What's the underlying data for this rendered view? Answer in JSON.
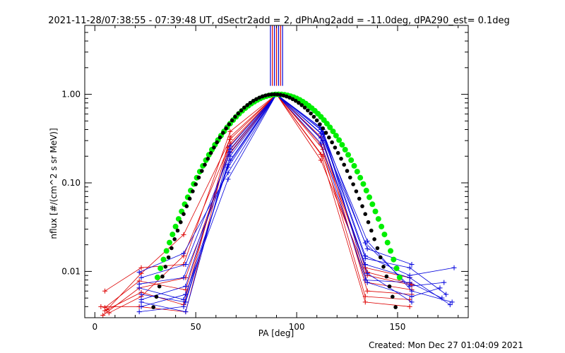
{
  "chart_data": {
    "type": "line",
    "title": "2021-11-28/07:38:55 - 07:39:48 UT, dSectr2add = 2, dPhAng2add = -11.0deg, dPA290_est=  0.1deg",
    "xlabel": "PA [deg]",
    "ylabel": "nflux [#/(cm^2 s sr MeV)]",
    "xlim": [
      -5,
      185
    ],
    "ylim": [
      0.003,
      6.0
    ],
    "yscale": "log",
    "x_ticks": [
      0,
      50,
      100,
      150
    ],
    "x_tick_labels": [
      "0",
      "50",
      "100",
      "150"
    ],
    "y_ticks": [
      0.01,
      0.1,
      1.0
    ],
    "y_tick_labels": [
      "0.01",
      "0.10",
      "1.00"
    ],
    "x_minor_step": 10,
    "grid": false,
    "footer": "Created: Mon Dec 27 01:04:09 2021",
    "colors": {
      "red": "#dd0000",
      "blue": "#0000dd",
      "green": "#00ee00",
      "black": "#000000"
    },
    "series": [
      {
        "color": "red",
        "points": [
          [
            5,
            0.006
          ],
          [
            23,
            0.011
          ],
          [
            44,
            0.012
          ],
          [
            67,
            0.38
          ],
          [
            90,
            1.0
          ],
          [
            112,
            0.18
          ],
          [
            135,
            0.009
          ],
          [
            157,
            0.007
          ]
        ]
      },
      {
        "color": "red",
        "points": [
          [
            3,
            0.004
          ],
          [
            22,
            0.004
          ],
          [
            45,
            0.0035
          ],
          [
            66,
            0.25
          ],
          [
            90,
            1.0
          ],
          [
            112,
            0.21
          ],
          [
            134,
            0.0045
          ],
          [
            156,
            0.004
          ]
        ]
      },
      {
        "color": "red",
        "points": [
          [
            6,
            0.0037
          ],
          [
            23,
            0.0095
          ],
          [
            44,
            0.026
          ],
          [
            67,
            0.31
          ],
          [
            90,
            1.0
          ],
          [
            113,
            0.3
          ],
          [
            135,
            0.006
          ],
          [
            157,
            0.0055
          ]
        ]
      },
      {
        "color": "red",
        "points": [
          [
            4,
            0.0032
          ],
          [
            22,
            0.0065
          ],
          [
            45,
            0.0085
          ],
          [
            66,
            0.2
          ],
          [
            90,
            1.0
          ],
          [
            112,
            0.33
          ],
          [
            134,
            0.011
          ],
          [
            156,
            0.0085
          ]
        ]
      },
      {
        "color": "red",
        "points": [
          [
            7,
            0.0034
          ],
          [
            23,
            0.0052
          ],
          [
            44,
            0.015
          ],
          [
            67,
            0.28
          ],
          [
            90,
            1.0
          ],
          [
            113,
            0.2
          ],
          [
            135,
            0.0075
          ],
          [
            157,
            0.0062
          ]
        ]
      },
      {
        "color": "red",
        "points": [
          [
            5,
            0.0039
          ],
          [
            22,
            0.0078
          ],
          [
            45,
            0.0062
          ],
          [
            66,
            0.22
          ],
          [
            90,
            1.0
          ],
          [
            112,
            0.27
          ],
          [
            134,
            0.0052
          ],
          [
            156,
            0.0048
          ]
        ]
      },
      {
        "color": "red",
        "points": [
          [
            5,
            0.0036
          ],
          [
            23,
            0.0058
          ],
          [
            44,
            0.0042
          ],
          [
            67,
            0.33
          ],
          [
            90,
            1.0
          ],
          [
            113,
            0.24
          ],
          [
            135,
            0.0098
          ],
          [
            157,
            0.0072
          ]
        ]
      },
      {
        "color": "blue",
        "points": [
          [
            23,
            0.0055
          ],
          [
            45,
            0.0045
          ],
          [
            67,
            0.2
          ],
          [
            90,
            1.0
          ],
          [
            112,
            0.42
          ],
          [
            134,
            0.015
          ],
          [
            156,
            0.009
          ],
          [
            178,
            0.011
          ]
        ]
      },
      {
        "color": "blue",
        "points": [
          [
            22,
            0.0072
          ],
          [
            44,
            0.0085
          ],
          [
            66,
            0.15
          ],
          [
            90,
            1.0
          ],
          [
            113,
            0.35
          ],
          [
            135,
            0.022
          ],
          [
            157,
            0.006
          ],
          [
            177,
            0.0045
          ]
        ]
      },
      {
        "color": "blue",
        "points": [
          [
            23,
            0.0045
          ],
          [
            45,
            0.0035
          ],
          [
            67,
            0.24
          ],
          [
            90,
            1.0
          ],
          [
            112,
            0.28
          ],
          [
            134,
            0.008
          ],
          [
            156,
            0.0075
          ],
          [
            172,
            0.005
          ]
        ]
      },
      {
        "color": "blue",
        "points": [
          [
            22,
            0.0098
          ],
          [
            44,
            0.016
          ],
          [
            66,
            0.13
          ],
          [
            90,
            1.0
          ],
          [
            113,
            0.38
          ],
          [
            135,
            0.018
          ],
          [
            157,
            0.012
          ]
        ]
      },
      {
        "color": "blue",
        "points": [
          [
            23,
            0.004
          ],
          [
            45,
            0.0055
          ],
          [
            67,
            0.18
          ],
          [
            90,
            1.0
          ],
          [
            112,
            0.32
          ],
          [
            134,
            0.012
          ],
          [
            156,
            0.0085
          ],
          [
            176,
            0.0042
          ]
        ]
      },
      {
        "color": "blue",
        "points": [
          [
            22,
            0.0065
          ],
          [
            44,
            0.0048
          ],
          [
            66,
            0.11
          ],
          [
            90,
            1.0
          ],
          [
            113,
            0.4
          ],
          [
            135,
            0.0075
          ],
          [
            157,
            0.0052
          ],
          [
            171,
            0.0065
          ]
        ]
      },
      {
        "color": "blue",
        "points": [
          [
            23,
            0.0085
          ],
          [
            45,
            0.012
          ],
          [
            67,
            0.22
          ],
          [
            90,
            1.0
          ],
          [
            112,
            0.36
          ],
          [
            134,
            0.021
          ],
          [
            156,
            0.0068
          ],
          [
            173,
            0.0075
          ]
        ]
      },
      {
        "color": "blue",
        "points": [
          [
            22,
            0.0035
          ],
          [
            44,
            0.004
          ],
          [
            66,
            0.16
          ],
          [
            90,
            1.0
          ],
          [
            113,
            0.3
          ],
          [
            135,
            0.0095
          ],
          [
            157,
            0.0045
          ]
        ]
      },
      {
        "color": "blue",
        "points": [
          [
            23,
            0.0048
          ],
          [
            45,
            0.0068
          ],
          [
            67,
            0.26
          ],
          [
            90,
            1.0
          ],
          [
            112,
            0.4
          ],
          [
            134,
            0.014
          ],
          [
            156,
            0.011
          ],
          [
            174,
            0.0055
          ]
        ]
      }
    ],
    "fits": [
      {
        "color": "green",
        "center": 91,
        "width": 27.5,
        "peak": 1.0
      },
      {
        "color": "black",
        "center": 89,
        "width": 25.5,
        "peak": 1.0
      }
    ],
    "spikes_x": [
      87,
      88,
      89,
      90,
      91,
      92,
      93
    ]
  }
}
